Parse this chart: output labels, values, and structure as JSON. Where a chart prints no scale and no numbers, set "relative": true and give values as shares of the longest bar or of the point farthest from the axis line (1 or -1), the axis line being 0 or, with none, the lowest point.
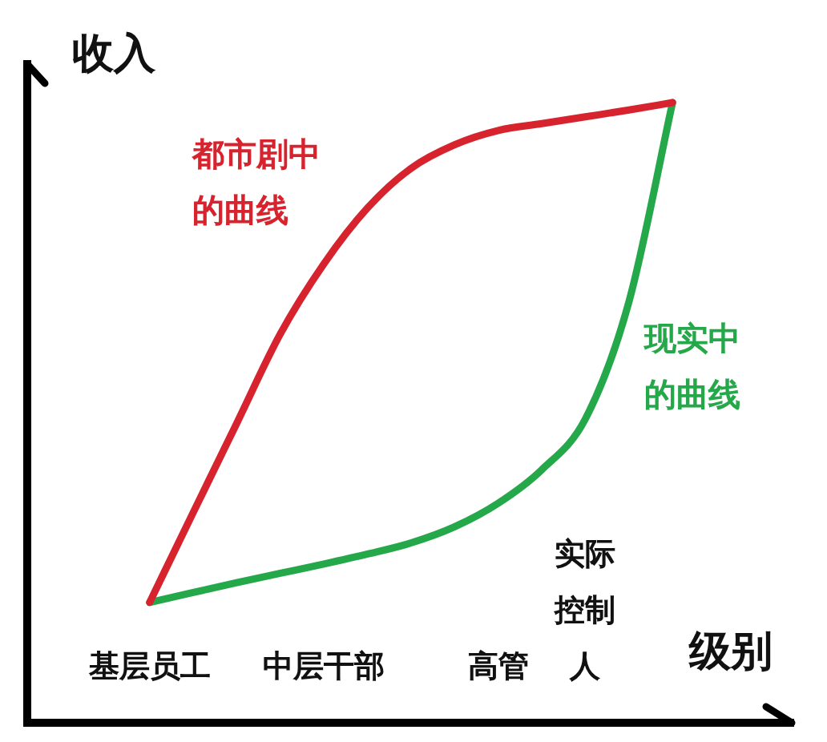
{
  "chart_data": {
    "type": "line",
    "xlabel": "级别",
    "ylabel": "收入",
    "relative": true,
    "categories": [
      "基层员工",
      null,
      null,
      null,
      "中层干部",
      null,
      null,
      null,
      "高管",
      null,
      "实际控制人",
      null,
      null
    ],
    "series": [
      {
        "name": "都市剧中的曲线",
        "color": "#d7232e",
        "values": [
          0.194,
          0.339,
          0.483,
          0.627,
          0.74,
          0.83,
          0.894,
          0.932,
          0.955,
          0.966,
          0.977,
          0.988,
          1
        ]
      },
      {
        "name": "现实中的曲线",
        "color": "#25a84a",
        "values": [
          0.194,
          0.21,
          0.226,
          0.241,
          0.256,
          0.272,
          0.29,
          0.316,
          0.354,
          0.408,
          0.49,
          0.679,
          1
        ]
      }
    ],
    "grid": false,
    "legend": false,
    "marker": "none",
    "tick_labels": "x"
  }
}
